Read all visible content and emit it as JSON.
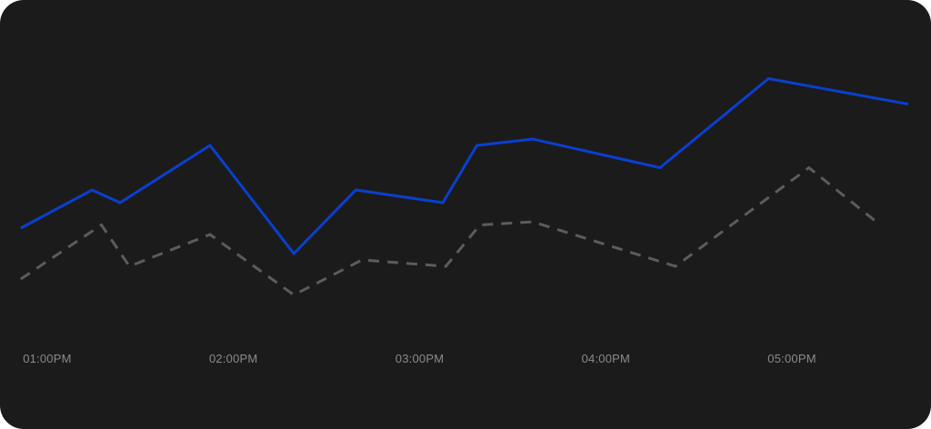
{
  "chart_data": {
    "type": "line",
    "title": "",
    "xlabel": "",
    "ylabel": "",
    "x_ticks": [
      "01:00PM",
      "02:00PM",
      "03:00PM",
      "04:00PM",
      "05:00PM"
    ],
    "x_range_hours": [
      12.95,
      17.77
    ],
    "y_range": [
      0,
      100
    ],
    "grid": false,
    "legend": "none",
    "series": [
      {
        "style": "solid",
        "color": "#0a3fd0",
        "points": [
          {
            "x": "12:59PM",
            "y": 36
          },
          {
            "x": "01:22PM",
            "y": 48
          },
          {
            "x": "01:31PM",
            "y": 44
          },
          {
            "x": "02:00PM",
            "y": 62
          },
          {
            "x": "02:27PM",
            "y": 28
          },
          {
            "x": "02:47PM",
            "y": 48
          },
          {
            "x": "03:15PM",
            "y": 44
          },
          {
            "x": "03:26PM",
            "y": 62
          },
          {
            "x": "03:44PM",
            "y": 64
          },
          {
            "x": "04:25PM",
            "y": 55
          },
          {
            "x": "05:00PM",
            "y": 83
          },
          {
            "x": "05:45PM",
            "y": 75
          }
        ]
      },
      {
        "style": "dashed",
        "color": "#5c5c5c",
        "points": [
          {
            "x": "12:59PM",
            "y": 20
          },
          {
            "x": "01:25PM",
            "y": 37
          },
          {
            "x": "01:34PM",
            "y": 24
          },
          {
            "x": "02:00PM",
            "y": 34
          },
          {
            "x": "02:27PM",
            "y": 15
          },
          {
            "x": "02:49PM",
            "y": 26
          },
          {
            "x": "03:16PM",
            "y": 24
          },
          {
            "x": "03:27PM",
            "y": 37
          },
          {
            "x": "03:44PM",
            "y": 38
          },
          {
            "x": "04:30PM",
            "y": 24
          },
          {
            "x": "05:13PM",
            "y": 55
          },
          {
            "x": "05:36PM",
            "y": 37
          }
        ]
      }
    ]
  }
}
